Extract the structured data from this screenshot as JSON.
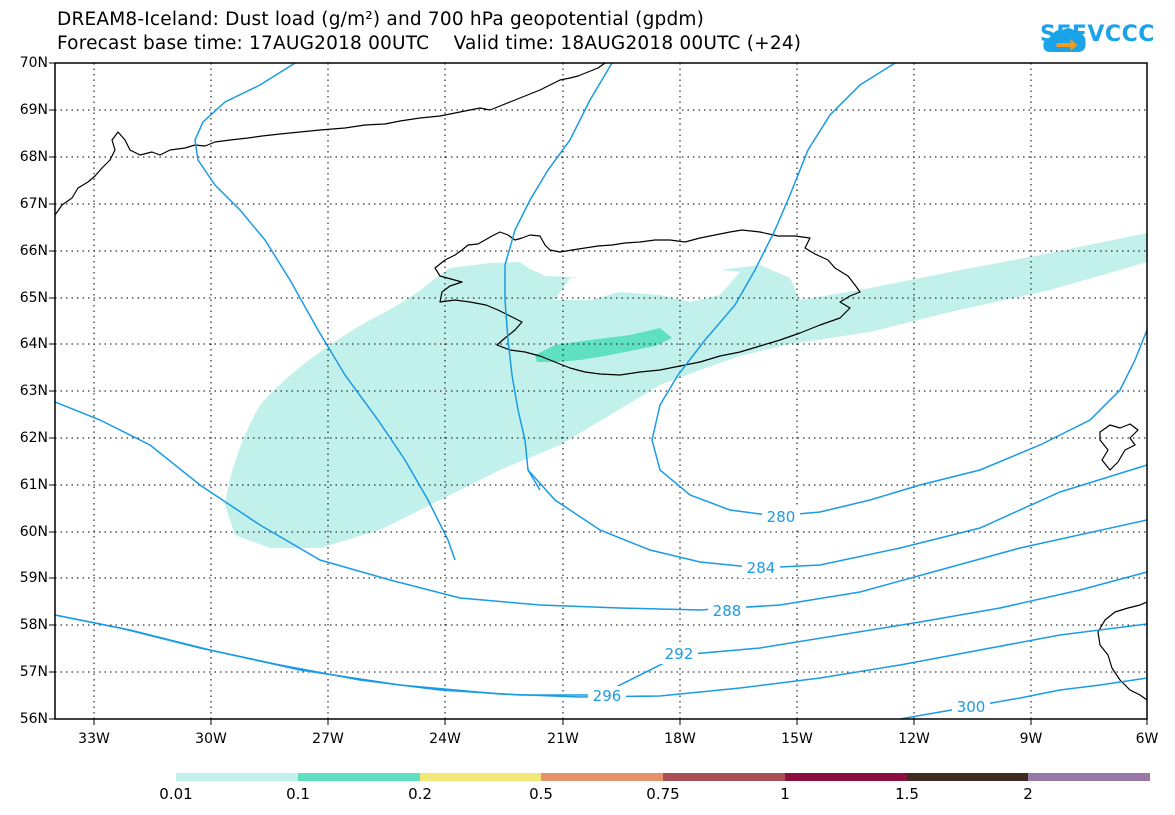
{
  "title": {
    "line1": "DREAM8-Iceland: Dust load (g/m²) and 700 hPa geopotential (gpdm)",
    "line2": "Forecast base time: 17AUG2018 00UTC    Valid time: 18AUG2018 00UTC (+24)"
  },
  "logo": {
    "text": "SEEVCCC",
    "icon": "cloud-arrow-icon"
  },
  "map": {
    "lat_labels": [
      "70N",
      "69N",
      "68N",
      "67N",
      "66N",
      "65N",
      "64N",
      "63N",
      "62N",
      "61N",
      "60N",
      "59N",
      "58N",
      "57N",
      "56N"
    ],
    "lon_labels": [
      "33W",
      "30W",
      "27W",
      "24W",
      "21W",
      "18W",
      "15W",
      "12W",
      "9W",
      "6W"
    ],
    "lat_range": [
      56,
      70
    ],
    "lon_range": [
      -34.3,
      -6
    ],
    "grid": "dotted",
    "contour_color": "#1a9be6",
    "contour_labels": [
      "280",
      "284",
      "288",
      "292",
      "296",
      "300"
    ],
    "contour_label_color": "#1a9be6",
    "dust_colors": {
      "0.01": "#c2f0ea",
      "0.1": "#5fe0c0"
    }
  },
  "colorbar": {
    "labels": [
      "0.01",
      "0.1",
      "0.2",
      "0.5",
      "0.75",
      "1",
      "1.5",
      "2"
    ],
    "colors": [
      "#c2f0ea",
      "#5fe0c0",
      "#f2e87a",
      "#e8926b",
      "#a85055",
      "#8b1040",
      "#3d2a20",
      "#9a78a8"
    ]
  }
}
